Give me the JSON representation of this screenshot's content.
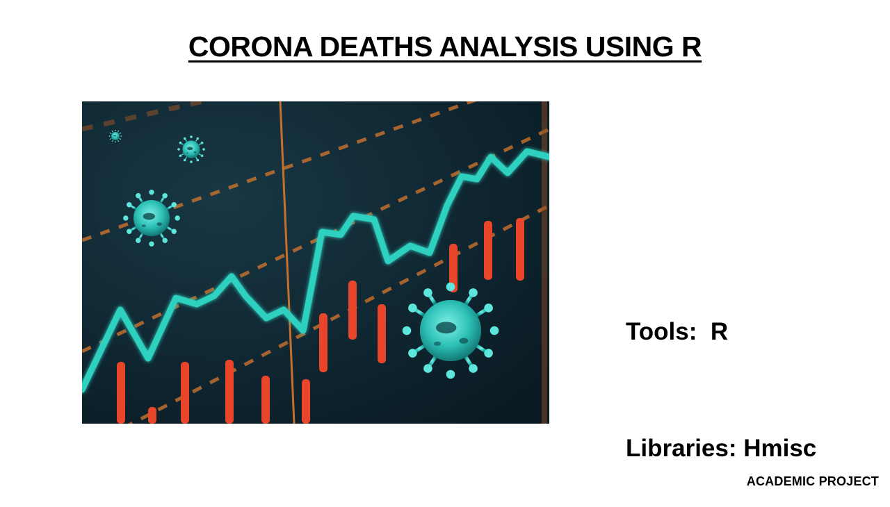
{
  "slide": {
    "title": "CORONA DEATHS ANALYSIS USING R",
    "tools_line": "Tools:  R",
    "libraries_line": "Libraries: Hmisc",
    "footer": "ACADEMIC PROJECT"
  },
  "image": {
    "icon": "virus-chart-illustration",
    "colors": {
      "background": "#0e2530",
      "trend_line": "#2fd0c0",
      "bars": "#e8452a",
      "dashed_lines": "#d9772c",
      "virus": "#3fd3c8"
    }
  }
}
